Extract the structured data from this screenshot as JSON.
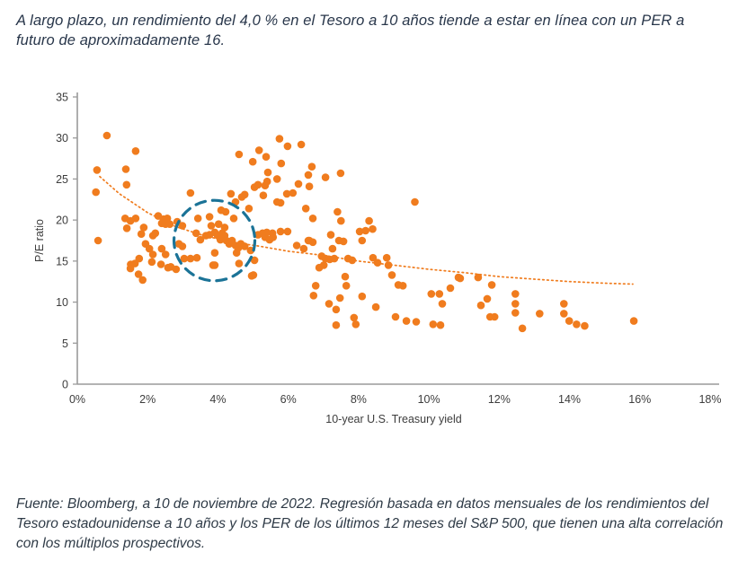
{
  "headline": "A largo plazo, un rendimiento del 4,0 % en el Tesoro a 10 años tiende a estar en línea con un PER a futuro de aproximadamente 16.",
  "footnote": "Fuente: Bloomberg, a 10 de noviembre de 2022. Regresión basada en datos mensuales de los rendimientos del Tesoro estadounidense a 10 años y los PER de los últimos 12 meses del S&P 500, que tienen una alta correlación con los múltiplos prospectivos.",
  "chart_data": {
    "type": "scatter",
    "xlabel": "10-year U.S. Treasury yield",
    "ylabel": "P/E ratio",
    "xlim": [
      0,
      18
    ],
    "ylim": [
      0,
      35
    ],
    "x_tick_values": [
      0,
      2,
      4,
      6,
      8,
      10,
      12,
      14,
      16,
      18
    ],
    "x_tick_labels": [
      "0%",
      "2%",
      "4%",
      "6%",
      "8%",
      "10%",
      "12%",
      "14%",
      "16%",
      "18%"
    ],
    "y_tick_values": [
      0,
      5,
      10,
      15,
      20,
      25,
      30,
      35
    ],
    "grid": false,
    "colors": {
      "points": "#F07C1E",
      "trend": "#F07C1E",
      "annotation": "#1B7397",
      "axis": "#9a9a9a",
      "tick_text": "#3d3d3d"
    },
    "annotation_circle": {
      "x": 3.9,
      "y": 17.5,
      "rx_pct": 1.15,
      "ry_pe": 4.9
    },
    "trend": [
      [
        0.64,
        25.3
      ],
      [
        1.2,
        23.2
      ],
      [
        2.0,
        20.9
      ],
      [
        2.8,
        19.2
      ],
      [
        3.6,
        18.1
      ],
      [
        4.4,
        17.3
      ],
      [
        5.2,
        16.8
      ],
      [
        6.0,
        16.2
      ],
      [
        7.0,
        15.7
      ],
      [
        8.0,
        15.0
      ],
      [
        9.0,
        14.5
      ],
      [
        10.0,
        14.0
      ],
      [
        11.0,
        13.6
      ],
      [
        12.0,
        13.1
      ],
      [
        13.0,
        12.8
      ],
      [
        14.0,
        12.5
      ],
      [
        15.0,
        12.3
      ],
      [
        15.8,
        12.2
      ]
    ],
    "points": [
      [
        0.84,
        30.3
      ],
      [
        1.66,
        28.4
      ],
      [
        0.56,
        26.1
      ],
      [
        1.38,
        26.2
      ],
      [
        0.53,
        23.4
      ],
      [
        1.4,
        24.3
      ],
      [
        0.59,
        17.5
      ],
      [
        1.36,
        20.2
      ],
      [
        1.51,
        19.9
      ],
      [
        1.66,
        20.2
      ],
      [
        1.89,
        19.1
      ],
      [
        1.41,
        19.0
      ],
      [
        1.82,
        18.3
      ],
      [
        1.94,
        17.1
      ],
      [
        2.15,
        18.1
      ],
      [
        2.22,
        18.4
      ],
      [
        2.05,
        16.5
      ],
      [
        2.15,
        15.8
      ],
      [
        1.76,
        15.3
      ],
      [
        1.52,
        14.6
      ],
      [
        1.51,
        14.1
      ],
      [
        1.74,
        13.4
      ],
      [
        1.86,
        12.7
      ],
      [
        2.12,
        14.9
      ],
      [
        2.3,
        20.5
      ],
      [
        2.45,
        20.1
      ],
      [
        2.51,
        19.5
      ],
      [
        2.56,
        20.2
      ],
      [
        2.4,
        19.6
      ],
      [
        2.63,
        19.5
      ],
      [
        2.4,
        16.5
      ],
      [
        2.51,
        15.8
      ],
      [
        2.66,
        14.3
      ],
      [
        1.64,
        14.7
      ],
      [
        2.38,
        14.6
      ],
      [
        2.58,
        14.2
      ],
      [
        2.81,
        14.0
      ],
      [
        3.22,
        23.3
      ],
      [
        4.37,
        23.2
      ],
      [
        4.68,
        22.8
      ],
      [
        5.14,
        24.3
      ],
      [
        5.4,
        24.7
      ],
      [
        4.88,
        21.4
      ],
      [
        4.5,
        22.2
      ],
      [
        5.75,
        29.9
      ],
      [
        5.98,
        29.0
      ],
      [
        6.37,
        29.2
      ],
      [
        5.17,
        28.5
      ],
      [
        5.37,
        27.7
      ],
      [
        4.6,
        28.0
      ],
      [
        4.99,
        27.1
      ],
      [
        5.8,
        26.9
      ],
      [
        6.67,
        26.5
      ],
      [
        5.42,
        25.8
      ],
      [
        5.68,
        25.0
      ],
      [
        5.04,
        24.0
      ],
      [
        5.34,
        24.2
      ],
      [
        5.29,
        23.0
      ],
      [
        6.29,
        24.4
      ],
      [
        5.96,
        23.2
      ],
      [
        4.76,
        23.1
      ],
      [
        5.68,
        22.2
      ],
      [
        5.78,
        22.1
      ],
      [
        4.09,
        21.2
      ],
      [
        4.22,
        21.0
      ],
      [
        6.57,
        25.5
      ],
      [
        6.6,
        24.1
      ],
      [
        6.5,
        21.4
      ],
      [
        6.13,
        23.3
      ],
      [
        7.06,
        25.2
      ],
      [
        7.49,
        25.7
      ],
      [
        2.84,
        19.8
      ],
      [
        2.99,
        19.3
      ],
      [
        2.89,
        17.1
      ],
      [
        2.99,
        16.8
      ],
      [
        3.43,
        20.2
      ],
      [
        3.5,
        17.6
      ],
      [
        3.76,
        20.4
      ],
      [
        3.81,
        19.3
      ],
      [
        3.76,
        18.2
      ],
      [
        3.91,
        18.5
      ],
      [
        3.99,
        18.1
      ],
      [
        4.07,
        17.6
      ],
      [
        4.12,
        18.4
      ],
      [
        4.19,
        18.1
      ],
      [
        4.24,
        17.5
      ],
      [
        4.32,
        17.1
      ],
      [
        4.4,
        17.5
      ],
      [
        4.5,
        16.9
      ],
      [
        4.58,
        16.6
      ],
      [
        4.65,
        17.1
      ],
      [
        4.76,
        16.8
      ],
      [
        4.19,
        19.1
      ],
      [
        4.45,
        20.2
      ],
      [
        4.02,
        19.5
      ],
      [
        3.66,
        18.1
      ],
      [
        3.38,
        18.4
      ],
      [
        3.04,
        15.3
      ],
      [
        3.22,
        15.3
      ],
      [
        3.4,
        15.4
      ],
      [
        3.86,
        14.5
      ],
      [
        3.91,
        16.0
      ],
      [
        4.53,
        16.0
      ],
      [
        4.93,
        16.3
      ],
      [
        5.04,
        15.1
      ],
      [
        5.01,
        13.3
      ],
      [
        5.14,
        18.2
      ],
      [
        5.27,
        18.4
      ],
      [
        5.39,
        18.5
      ],
      [
        5.34,
        17.9
      ],
      [
        5.47,
        17.6
      ],
      [
        5.57,
        17.9
      ],
      [
        3.91,
        14.5
      ],
      [
        4.6,
        14.7
      ],
      [
        4.96,
        13.2
      ],
      [
        5.55,
        18.4
      ],
      [
        5.78,
        18.6
      ],
      [
        5.98,
        18.6
      ],
      [
        6.24,
        16.9
      ],
      [
        6.44,
        16.5
      ],
      [
        6.57,
        17.5
      ],
      [
        6.7,
        17.3
      ],
      [
        7.21,
        18.2
      ],
      [
        7.26,
        16.5
      ],
      [
        7.44,
        17.5
      ],
      [
        7.57,
        17.4
      ],
      [
        6.95,
        15.6
      ],
      [
        7.06,
        15.3
      ],
      [
        7.18,
        15.2
      ],
      [
        7.31,
        15.3
      ],
      [
        6.88,
        14.2
      ],
      [
        7.01,
        14.5
      ],
      [
        7.7,
        15.3
      ],
      [
        7.82,
        15.1
      ],
      [
        8.03,
        18.6
      ],
      [
        8.41,
        15.4
      ],
      [
        8.54,
        14.8
      ],
      [
        8.8,
        15.4
      ],
      [
        8.85,
        14.5
      ],
      [
        8.95,
        13.3
      ],
      [
        9.13,
        12.1
      ],
      [
        9.26,
        12.0
      ],
      [
        7.62,
        13.1
      ],
      [
        7.65,
        12.0
      ],
      [
        7.47,
        10.5
      ],
      [
        6.78,
        12.0
      ],
      [
        6.72,
        10.8
      ],
      [
        7.16,
        9.8
      ],
      [
        7.36,
        9.1
      ],
      [
        7.87,
        8.1
      ],
      [
        8.1,
        10.7
      ],
      [
        8.49,
        9.4
      ],
      [
        9.05,
        8.2
      ],
      [
        9.36,
        7.7
      ],
      [
        9.64,
        7.6
      ],
      [
        7.36,
        7.2
      ],
      [
        7.92,
        7.3
      ],
      [
        8.3,
        19.9
      ],
      [
        7.4,
        21.0
      ],
      [
        6.7,
        20.2
      ],
      [
        7.5,
        19.9
      ],
      [
        8.2,
        18.7
      ],
      [
        8.4,
        18.9
      ],
      [
        8.1,
        17.5
      ],
      [
        6.6,
        17.5
      ],
      [
        9.6,
        22.2
      ],
      [
        10.07,
        11.0
      ],
      [
        10.3,
        11.0
      ],
      [
        10.61,
        11.7
      ],
      [
        10.89,
        12.9
      ],
      [
        10.38,
        9.8
      ],
      [
        10.12,
        7.3
      ],
      [
        10.33,
        7.2
      ],
      [
        10.84,
        13.0
      ],
      [
        11.4,
        13.0
      ],
      [
        11.48,
        9.6
      ],
      [
        11.79,
        12.1
      ],
      [
        11.66,
        10.4
      ],
      [
        11.74,
        8.2
      ],
      [
        11.87,
        8.2
      ],
      [
        12.46,
        11.0
      ],
      [
        12.46,
        9.8
      ],
      [
        12.46,
        8.7
      ],
      [
        12.66,
        6.8
      ],
      [
        13.15,
        8.6
      ],
      [
        13.84,
        9.8
      ],
      [
        13.84,
        8.6
      ],
      [
        13.99,
        7.7
      ],
      [
        14.2,
        7.3
      ],
      [
        14.43,
        7.1
      ],
      [
        15.83,
        7.7
      ]
    ]
  }
}
